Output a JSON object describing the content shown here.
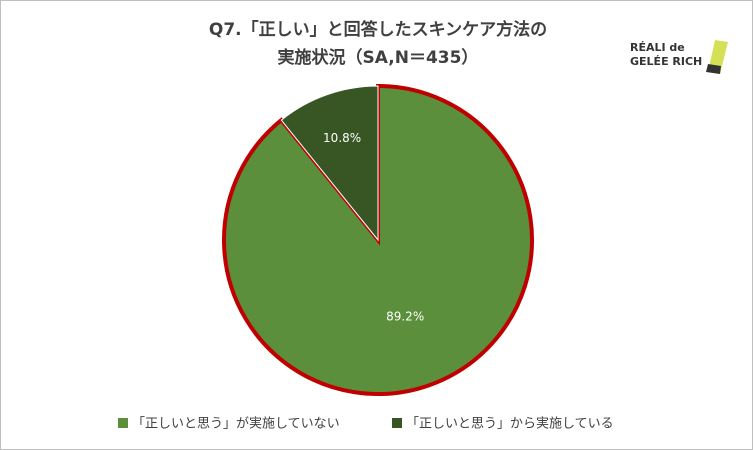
{
  "chart_data": {
    "type": "pie",
    "title": [
      "Q7.「正しい」と回答したスキンケア方法の",
      "実施状況（SA,N＝435）"
    ],
    "logo": [
      "RÉALI de",
      "GELÉE RICH"
    ],
    "categories": [
      "「正しいと思う」が実施していない",
      "「正しいと思う」から実施している"
    ],
    "values": [
      89.2,
      10.8
    ],
    "value_labels": [
      "89.2%",
      "10.8%"
    ],
    "colors": [
      "#5b8f3b",
      "#375623"
    ],
    "highlight_color": "#c00000",
    "legend": "bottom"
  }
}
